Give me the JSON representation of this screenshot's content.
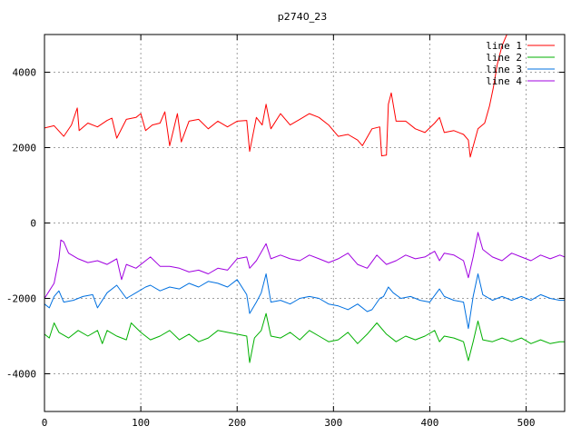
{
  "chart_data": {
    "type": "line",
    "title": "p2740_23",
    "xlabel": "",
    "ylabel": "",
    "xlim": [
      0,
      540
    ],
    "ylim": [
      -5000,
      5000
    ],
    "xticks": [
      0,
      100,
      200,
      300,
      400,
      500
    ],
    "yticks": [
      -4000,
      -2000,
      0,
      2000,
      4000
    ],
    "grid": true,
    "legend_position": "top-right",
    "series": [
      {
        "name": "line 1",
        "color": "#ff0000",
        "points": [
          [
            0,
            2520
          ],
          [
            10,
            2580
          ],
          [
            20,
            2300
          ],
          [
            28,
            2600
          ],
          [
            34,
            3050
          ],
          [
            36,
            2450
          ],
          [
            45,
            2650
          ],
          [
            55,
            2550
          ],
          [
            65,
            2720
          ],
          [
            70,
            2780
          ],
          [
            75,
            2250
          ],
          [
            85,
            2750
          ],
          [
            95,
            2800
          ],
          [
            100,
            2900
          ],
          [
            105,
            2450
          ],
          [
            112,
            2600
          ],
          [
            120,
            2650
          ],
          [
            125,
            2950
          ],
          [
            130,
            2050
          ],
          [
            138,
            2900
          ],
          [
            142,
            2150
          ],
          [
            150,
            2700
          ],
          [
            160,
            2750
          ],
          [
            170,
            2500
          ],
          [
            180,
            2700
          ],
          [
            190,
            2550
          ],
          [
            200,
            2700
          ],
          [
            210,
            2720
          ],
          [
            213,
            1900
          ],
          [
            220,
            2800
          ],
          [
            226,
            2600
          ],
          [
            230,
            3150
          ],
          [
            235,
            2500
          ],
          [
            245,
            2900
          ],
          [
            255,
            2600
          ],
          [
            265,
            2750
          ],
          [
            275,
            2900
          ],
          [
            285,
            2800
          ],
          [
            295,
            2600
          ],
          [
            305,
            2300
          ],
          [
            315,
            2350
          ],
          [
            325,
            2200
          ],
          [
            330,
            2050
          ],
          [
            340,
            2500
          ],
          [
            348,
            2550
          ],
          [
            350,
            1780
          ],
          [
            355,
            1800
          ],
          [
            357,
            3150
          ],
          [
            360,
            3450
          ],
          [
            365,
            2700
          ],
          [
            375,
            2700
          ],
          [
            385,
            2500
          ],
          [
            395,
            2400
          ],
          [
            405,
            2650
          ],
          [
            410,
            2800
          ],
          [
            415,
            2400
          ],
          [
            425,
            2450
          ],
          [
            435,
            2350
          ],
          [
            440,
            2200
          ],
          [
            442,
            1750
          ],
          [
            450,
            2500
          ],
          [
            457,
            2650
          ],
          [
            462,
            3100
          ],
          [
            466,
            3600
          ],
          [
            470,
            4200
          ],
          [
            475,
            4700
          ],
          [
            480,
            5000
          ]
        ]
      },
      {
        "name": "line 2",
        "color": "#00b000",
        "points": [
          [
            0,
            -2950
          ],
          [
            5,
            -3050
          ],
          [
            10,
            -2650
          ],
          [
            15,
            -2900
          ],
          [
            25,
            -3050
          ],
          [
            35,
            -2850
          ],
          [
            45,
            -3000
          ],
          [
            55,
            -2850
          ],
          [
            60,
            -3200
          ],
          [
            65,
            -2850
          ],
          [
            75,
            -3000
          ],
          [
            85,
            -3100
          ],
          [
            90,
            -2650
          ],
          [
            100,
            -2900
          ],
          [
            110,
            -3100
          ],
          [
            120,
            -3000
          ],
          [
            130,
            -2850
          ],
          [
            140,
            -3100
          ],
          [
            150,
            -2950
          ],
          [
            160,
            -3150
          ],
          [
            170,
            -3050
          ],
          [
            180,
            -2850
          ],
          [
            190,
            -2900
          ],
          [
            200,
            -2950
          ],
          [
            210,
            -3000
          ],
          [
            213,
            -3700
          ],
          [
            218,
            -3050
          ],
          [
            225,
            -2850
          ],
          [
            230,
            -2400
          ],
          [
            235,
            -3000
          ],
          [
            245,
            -3050
          ],
          [
            255,
            -2900
          ],
          [
            265,
            -3100
          ],
          [
            275,
            -2850
          ],
          [
            285,
            -3000
          ],
          [
            295,
            -3150
          ],
          [
            305,
            -3100
          ],
          [
            315,
            -2900
          ],
          [
            325,
            -3200
          ],
          [
            335,
            -2950
          ],
          [
            345,
            -2650
          ],
          [
            355,
            -2950
          ],
          [
            365,
            -3150
          ],
          [
            375,
            -3000
          ],
          [
            385,
            -3100
          ],
          [
            395,
            -3000
          ],
          [
            405,
            -2850
          ],
          [
            410,
            -3150
          ],
          [
            415,
            -3000
          ],
          [
            425,
            -3050
          ],
          [
            435,
            -3150
          ],
          [
            440,
            -3650
          ],
          [
            445,
            -3150
          ],
          [
            450,
            -2600
          ],
          [
            455,
            -3100
          ],
          [
            465,
            -3150
          ],
          [
            475,
            -3050
          ],
          [
            485,
            -3150
          ],
          [
            495,
            -3050
          ],
          [
            505,
            -3200
          ],
          [
            515,
            -3100
          ],
          [
            525,
            -3200
          ],
          [
            535,
            -3150
          ],
          [
            540,
            -3150
          ]
        ]
      },
      {
        "name": "line 3",
        "color": "#0070e0",
        "points": [
          [
            0,
            -2150
          ],
          [
            5,
            -2250
          ],
          [
            10,
            -1950
          ],
          [
            15,
            -1800
          ],
          [
            20,
            -2100
          ],
          [
            30,
            -2050
          ],
          [
            40,
            -1950
          ],
          [
            50,
            -1900
          ],
          [
            55,
            -2250
          ],
          [
            65,
            -1850
          ],
          [
            75,
            -1650
          ],
          [
            85,
            -2000
          ],
          [
            95,
            -1850
          ],
          [
            105,
            -1700
          ],
          [
            110,
            -1650
          ],
          [
            120,
            -1800
          ],
          [
            130,
            -1700
          ],
          [
            140,
            -1750
          ],
          [
            150,
            -1600
          ],
          [
            160,
            -1700
          ],
          [
            170,
            -1550
          ],
          [
            180,
            -1600
          ],
          [
            190,
            -1700
          ],
          [
            200,
            -1500
          ],
          [
            210,
            -1900
          ],
          [
            213,
            -2400
          ],
          [
            220,
            -2100
          ],
          [
            225,
            -1850
          ],
          [
            230,
            -1350
          ],
          [
            235,
            -2100
          ],
          [
            245,
            -2050
          ],
          [
            255,
            -2150
          ],
          [
            265,
            -2000
          ],
          [
            275,
            -1950
          ],
          [
            285,
            -2000
          ],
          [
            295,
            -2150
          ],
          [
            305,
            -2200
          ],
          [
            315,
            -2300
          ],
          [
            325,
            -2150
          ],
          [
            335,
            -2350
          ],
          [
            340,
            -2300
          ],
          [
            348,
            -2000
          ],
          [
            352,
            -1950
          ],
          [
            357,
            -1700
          ],
          [
            362,
            -1850
          ],
          [
            370,
            -2000
          ],
          [
            380,
            -1950
          ],
          [
            390,
            -2050
          ],
          [
            400,
            -2100
          ],
          [
            410,
            -1750
          ],
          [
            415,
            -1950
          ],
          [
            425,
            -2050
          ],
          [
            435,
            -2100
          ],
          [
            440,
            -2800
          ],
          [
            445,
            -1950
          ],
          [
            450,
            -1350
          ],
          [
            455,
            -1900
          ],
          [
            465,
            -2050
          ],
          [
            475,
            -1950
          ],
          [
            485,
            -2050
          ],
          [
            495,
            -1950
          ],
          [
            505,
            -2050
          ],
          [
            515,
            -1900
          ],
          [
            525,
            -2000
          ],
          [
            535,
            -2050
          ],
          [
            540,
            -2050
          ]
        ]
      },
      {
        "name": "line 4",
        "color": "#a000e0",
        "points": [
          [
            0,
            -2000
          ],
          [
            5,
            -1800
          ],
          [
            10,
            -1600
          ],
          [
            15,
            -950
          ],
          [
            17,
            -450
          ],
          [
            20,
            -500
          ],
          [
            25,
            -800
          ],
          [
            35,
            -950
          ],
          [
            45,
            -1050
          ],
          [
            55,
            -1000
          ],
          [
            65,
            -1100
          ],
          [
            75,
            -950
          ],
          [
            80,
            -1500
          ],
          [
            85,
            -1100
          ],
          [
            95,
            -1200
          ],
          [
            105,
            -1000
          ],
          [
            110,
            -900
          ],
          [
            120,
            -1150
          ],
          [
            130,
            -1150
          ],
          [
            140,
            -1200
          ],
          [
            150,
            -1300
          ],
          [
            160,
            -1250
          ],
          [
            170,
            -1350
          ],
          [
            180,
            -1200
          ],
          [
            190,
            -1250
          ],
          [
            200,
            -950
          ],
          [
            210,
            -900
          ],
          [
            213,
            -1200
          ],
          [
            220,
            -1000
          ],
          [
            230,
            -550
          ],
          [
            235,
            -950
          ],
          [
            245,
            -850
          ],
          [
            255,
            -950
          ],
          [
            265,
            -1000
          ],
          [
            275,
            -850
          ],
          [
            285,
            -950
          ],
          [
            295,
            -1050
          ],
          [
            305,
            -950
          ],
          [
            315,
            -800
          ],
          [
            325,
            -1100
          ],
          [
            335,
            -1200
          ],
          [
            345,
            -850
          ],
          [
            355,
            -1100
          ],
          [
            365,
            -1000
          ],
          [
            375,
            -850
          ],
          [
            385,
            -950
          ],
          [
            395,
            -900
          ],
          [
            405,
            -750
          ],
          [
            410,
            -1000
          ],
          [
            415,
            -800
          ],
          [
            425,
            -850
          ],
          [
            435,
            -1000
          ],
          [
            440,
            -1450
          ],
          [
            445,
            -900
          ],
          [
            450,
            -250
          ],
          [
            455,
            -700
          ],
          [
            465,
            -900
          ],
          [
            475,
            -1000
          ],
          [
            485,
            -800
          ],
          [
            495,
            -900
          ],
          [
            505,
            -1000
          ],
          [
            515,
            -850
          ],
          [
            525,
            -950
          ],
          [
            535,
            -850
          ],
          [
            540,
            -900
          ]
        ]
      }
    ]
  }
}
